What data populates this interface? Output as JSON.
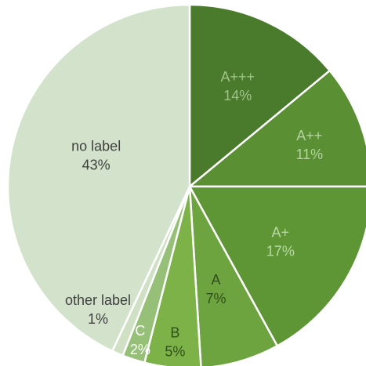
{
  "chart_data": {
    "type": "pie",
    "title": "",
    "slices": [
      {
        "name": "A+++",
        "value": 14,
        "value_label": "14%",
        "color": "#4a7a2c",
        "label_color": "#9ec489"
      },
      {
        "name": "A++",
        "value": 11,
        "value_label": "11%",
        "color": "#5a8f34",
        "label_color": "#b3d49f"
      },
      {
        "name": "A+",
        "value": 17,
        "value_label": "17%",
        "color": "#5e9636",
        "label_color": "#b8d9a4"
      },
      {
        "name": "A",
        "value": 7,
        "value_label": "7%",
        "color": "#6ea43f",
        "label_color": "#304f1c"
      },
      {
        "name": "B",
        "value": 5,
        "value_label": "5%",
        "color": "#7cb248",
        "label_color": "#304f1c"
      },
      {
        "name": "C",
        "value": 2,
        "value_label": "2%",
        "color": "#96bf78",
        "label_color": "#ffffff"
      },
      {
        "name": "other label",
        "value": 1,
        "value_label": "1%",
        "color": "#cfe0c4",
        "label_color": "#404040"
      },
      {
        "name": "no label",
        "value": 43,
        "value_label": "43%",
        "color": "#d3e3cb",
        "label_color": "#404040"
      }
    ]
  }
}
